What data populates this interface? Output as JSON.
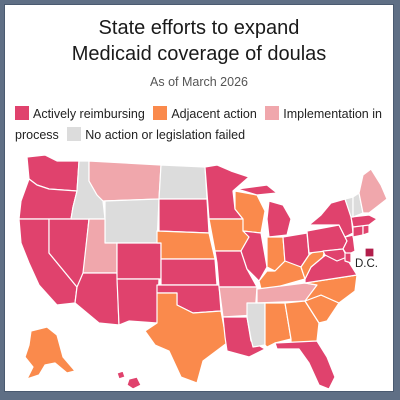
{
  "title_line1": "State efforts to expand",
  "title_line2": "Medicaid coverage of doulas",
  "subtitle": "As of March 2026",
  "legend": {
    "actively_reimbursing": "Actively reimbursing",
    "adjacent_action": "Adjacent action",
    "implementation_in_process": "Implementation in process",
    "no_action": "No action or legislation failed"
  },
  "colors": {
    "actively_reimbursing": "#e0426d",
    "adjacent_action": "#fa8a4c",
    "implementation_in_process": "#f0a7ac",
    "no_action": "#dcdcdc",
    "dc": "#b21e4b"
  },
  "dc_label": "D.C.",
  "states": {
    "WA": "actively_reimbursing",
    "OR": "actively_reimbursing",
    "CA": "actively_reimbursing",
    "NV": "actively_reimbursing",
    "AZ": "actively_reimbursing",
    "ID": "no_action",
    "MT": "implementation_in_process",
    "WY": "no_action",
    "UT": "implementation_in_process",
    "CO": "actively_reimbursing",
    "NM": "actively_reimbursing",
    "ND": "no_action",
    "SD": "actively_reimbursing",
    "NE": "adjacent_action",
    "KS": "actively_reimbursing",
    "OK": "actively_reimbursing",
    "TX": "adjacent_action",
    "MN": "actively_reimbursing",
    "IA": "adjacent_action",
    "MO": "actively_reimbursing",
    "AR": "implementation_in_process",
    "LA": "actively_reimbursing",
    "WI": "adjacent_action",
    "IL": "actively_reimbursing",
    "MI": "actively_reimbursing",
    "IN": "adjacent_action",
    "OH": "actively_reimbursing",
    "KY": "adjacent_action",
    "TN": "implementation_in_process",
    "MS": "no_action",
    "AL": "adjacent_action",
    "GA": "adjacent_action",
    "FL": "actively_reimbursing",
    "SC": "adjacent_action",
    "NC": "adjacent_action",
    "VA": "actively_reimbursing",
    "WV": "adjacent_action",
    "PA": "actively_reimbursing",
    "NY": "actively_reimbursing",
    "NJ": "actively_reimbursing",
    "DE": "actively_reimbursing",
    "MD": "actively_reimbursing",
    "CT": "actively_reimbursing",
    "RI": "actively_reimbursing",
    "MA": "actively_reimbursing",
    "VT": "no_action",
    "NH": "no_action",
    "ME": "implementation_in_process",
    "AK": "adjacent_action",
    "HI": "actively_reimbursing",
    "DC": "dc"
  }
}
